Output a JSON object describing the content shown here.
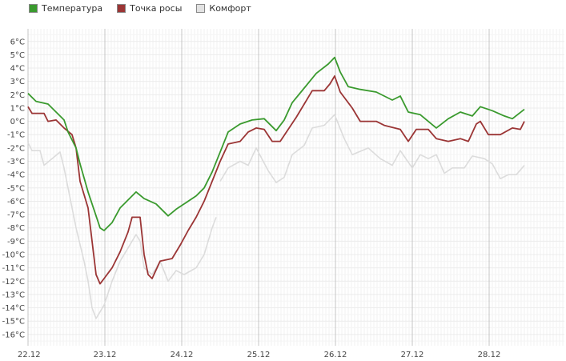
{
  "chart_data": {
    "type": "line",
    "title": "",
    "xlabel": "",
    "ylabel": "",
    "x_unit": "hours since 22.12 00:00",
    "xlim": [
      0,
      168
    ],
    "ylim": [
      -17,
      7
    ],
    "y_ticks": [
      "6°C",
      "5°C",
      "4°C",
      "3°C",
      "2°C",
      "1°C",
      "0°C",
      "-1°C",
      "-2°C",
      "-3°C",
      "-4°C",
      "-5°C",
      "-6°C",
      "-7°C",
      "-8°C",
      "-9°C",
      "-10°C",
      "-11°C",
      "-12°C",
      "-13°C",
      "-14°C",
      "-15°C",
      "-16°C"
    ],
    "y_tick_values": [
      6,
      5,
      4,
      3,
      2,
      1,
      0,
      -1,
      -2,
      -3,
      -4,
      -5,
      -6,
      -7,
      -8,
      -9,
      -10,
      -11,
      -12,
      -13,
      -14,
      -15,
      -16
    ],
    "x_ticks": [
      "22.12",
      "23.12",
      "24.12",
      "25.12",
      "26.12",
      "27.12",
      "28.12"
    ],
    "x_tick_values": [
      0,
      24,
      48,
      72,
      96,
      120,
      144
    ],
    "grid": true,
    "legend_position": "top-left",
    "series": [
      {
        "name": "Температура",
        "color": "#3a9a2e",
        "x": [
          0,
          2.5,
          6.25,
          10,
          11.25,
          12.5,
          15,
          16.25,
          18.75,
          21.25,
          22.5,
          23.75,
          26.25,
          28.75,
          31.25,
          33.75,
          36.25,
          40,
          43.75,
          46.25,
          48.75,
          52.5,
          55,
          57.5,
          60,
          62.5,
          66.25,
          70,
          73.75,
          77.5,
          80,
          82.5,
          86.25,
          90,
          93.75,
          95.75,
          97.5,
          100,
          103.75,
          108.75,
          113.75,
          116.25,
          118.75,
          122.5,
          127.5,
          131.25,
          135,
          138.75,
          141.25,
          145,
          148.75,
          151.25,
          155
        ],
        "y": [
          2.1,
          1.5,
          1.3,
          0.4,
          0.1,
          -0.8,
          -2,
          -3.2,
          -5.3,
          -7.1,
          -8,
          -8.2,
          -7.6,
          -6.5,
          -5.9,
          -5.3,
          -5.8,
          -6.2,
          -7.1,
          -6.6,
          -6.2,
          -5.6,
          -5,
          -3.8,
          -2.3,
          -0.8,
          -0.2,
          0.1,
          0.2,
          -0.7,
          0.1,
          1.4,
          2.5,
          3.6,
          4.3,
          4.8,
          3.7,
          2.6,
          2.4,
          2.2,
          1.6,
          1.9,
          0.7,
          0.5,
          -0.5,
          0.2,
          0.7,
          0.4,
          1.1,
          0.8,
          0.4,
          0.2,
          0.9
        ]
      },
      {
        "name": "Точка росы",
        "color": "#9b3535",
        "x": [
          0,
          1.25,
          5,
          6.25,
          8.75,
          11.25,
          13.75,
          15,
          16.25,
          18.75,
          20,
          21.25,
          22.5,
          23.75,
          26.25,
          28.75,
          31.25,
          32.5,
          35,
          36.25,
          37.5,
          38.75,
          41.25,
          45,
          47.5,
          50,
          52.5,
          55,
          57.5,
          60,
          62.5,
          66.25,
          68.75,
          71.25,
          73.75,
          76.25,
          78.75,
          81.25,
          83.75,
          86.25,
          88.75,
          92.5,
          94.25,
          95.75,
          97.5,
          101.25,
          103.75,
          108.75,
          111.25,
          116.25,
          118.75,
          121.25,
          125,
          127.5,
          131.25,
          135,
          137.5,
          140,
          141.25,
          143.75,
          147.5,
          151.25,
          153.75,
          155
        ],
        "y": [
          1.1,
          0.6,
          0.6,
          0,
          0.1,
          -0.5,
          -1,
          -2,
          -4.5,
          -6.5,
          -9,
          -11.5,
          -12.2,
          -11.8,
          -11,
          -9.8,
          -8.3,
          -7.2,
          -7.2,
          -10,
          -11.5,
          -11.8,
          -10.5,
          -10.3,
          -9.3,
          -8.2,
          -7.2,
          -6,
          -4.5,
          -3,
          -1.7,
          -1.5,
          -0.8,
          -0.5,
          -0.6,
          -1.5,
          -1.5,
          -0.6,
          0.3,
          1.3,
          2.3,
          2.3,
          2.8,
          3.4,
          2.2,
          1,
          0,
          0,
          -0.3,
          -0.6,
          -1.5,
          -0.6,
          -0.6,
          -1.3,
          -1.5,
          -1.3,
          -1.5,
          -0.2,
          0,
          -1,
          -1,
          -0.5,
          -0.6,
          0
        ]
      },
      {
        "name": "Комфорт",
        "color": "#dcdcdc",
        "x": [
          0,
          1.25,
          3.75,
          5,
          7.5,
          10,
          11.25,
          12.5,
          15,
          17.5,
          18.75,
          20,
          21.25,
          23.75,
          26.25,
          28.75,
          31.25,
          33.75,
          35,
          36.25,
          38.75,
          41.25,
          43.75,
          46.25,
          48.75,
          52.5,
          55,
          57.5,
          58.75,
          59.5,
          60,
          62.5,
          66.25,
          68.75,
          71.25,
          75,
          77.5,
          80,
          82.5,
          86.25,
          88.75,
          92.5,
          95.75,
          98.75,
          101.25,
          106.25,
          110,
          113.75,
          116.25,
          120,
          122.5,
          125,
          127.5,
          130,
          132.5,
          136.25,
          138.75,
          142.5,
          145,
          147.5,
          150,
          152.5,
          155
        ],
        "y": [
          -1.6,
          -2.2,
          -2.2,
          -3.3,
          -2.8,
          -2.3,
          -3.5,
          -5,
          -8,
          -10.5,
          -12,
          -14,
          -14.8,
          -13.8,
          -12,
          -10.5,
          -9.5,
          -8.5,
          -9,
          -11,
          -11.5,
          -10.5,
          -12,
          -11.2,
          -11.5,
          -11,
          -10,
          -8,
          -7.2,
          null,
          -4.5,
          -3.5,
          -3,
          -3.3,
          -2,
          -3.7,
          -4.6,
          -4.2,
          -2.5,
          -1.8,
          -0.5,
          -0.3,
          0.5,
          -1.3,
          -2.5,
          -2,
          -2.8,
          -3.3,
          -2.2,
          -3.5,
          -2.5,
          -2.8,
          -2.5,
          -3.9,
          -3.5,
          -3.5,
          -2.6,
          -2.8,
          -3.2,
          -4.3,
          -4,
          -4,
          -3.3
        ]
      }
    ]
  }
}
